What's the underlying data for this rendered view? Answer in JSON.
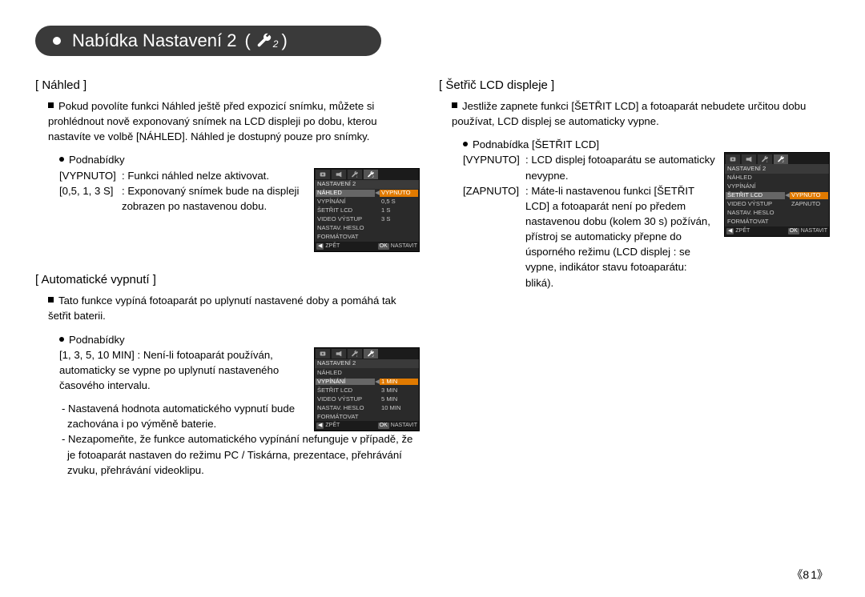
{
  "header": {
    "title": "Nabídka Nastavení 2",
    "open_paren": "(",
    "close_paren": ")",
    "subscript": "2",
    "wrench_color": "#ffffff"
  },
  "page_number": "81",
  "left": {
    "section1": {
      "title": "[ Náhled ]",
      "intro": "Pokud povolíte funkci Náhled ještě před expozicí snímku, můžete si prohlédnout nově exponovaný snímek na LCD displeji po dobu, kterou nastavíte ve volbě [NÁHLED]. Náhled je dostupný pouze pro snímky.",
      "sub_label": "Podnabídky",
      "opt1_key": "[VYPNUTO]",
      "opt1_val": ": Funkci náhled nelze aktivovat.",
      "opt2_key": "[0,5, 1, 3 S]",
      "opt2_val": ": Exponovaný snímek bude na displeji zobrazen po nastavenou dobu."
    },
    "section2": {
      "title": "[ Automatické vypnutí ]",
      "intro": "Tato funkce vypíná fotoaparát po uplynutí nastavené doby a pomáhá tak šetřit baterii.",
      "sub_label": "Podnabídky",
      "opt1_key": "[1, 3, 5, 10 MIN] : ",
      "opt1_val": "Není-li fotoaparát používán, automaticky se vypne po uplynutí nastaveného časového intervalu.",
      "note1": "- Nastavená hodnota automatického vypnutí bude zachována i po výměně baterie.",
      "note2": "- Nezapomeňte, že funkce automatického vypínání nefunguje v případě, že je fotoaparát nastaven do režimu PC / Tiskárna, prezentace, přehrávání zvuku, přehrávání videoklipu."
    }
  },
  "right": {
    "section1": {
      "title": "[ Šetřič LCD displeje ]",
      "intro": "Jestliže zapnete funkci [ŠETŘIT LCD] a fotoaparát nebudete určitou dobu používat, LCD displej se automaticky vypne.",
      "sub_label": "Podnabídka [ŠETŘIT LCD]",
      "opt1_key": "[VYPNUTO]",
      "opt1_val": ": LCD displej fotoaparátu se automaticky nevypne.",
      "opt2_key": "[ZAPNUTO]",
      "opt2_val": ": Máte-li nastavenou funkci [ŠETŘIT LCD] a fotoaparát není po předem nastavenou dobu (kolem 30 s) požíván, přístroj se automaticky přepne do úsporného režimu (LCD displej : se vypne, indikátor stavu fotoaparátu: bliká)."
    }
  },
  "lcd1": {
    "heading": "NASTAVENÍ 2",
    "rows": [
      {
        "l": "NÁHLED",
        "r": "VYPNUTO",
        "sel": true,
        "hilite": true
      },
      {
        "l": "VYPÍNÁNÍ",
        "r": "0,5 S"
      },
      {
        "l": "ŠETŘIT LCD",
        "r": "1 S"
      },
      {
        "l": "VIDEO VÝSTUP",
        "r": "3 S"
      },
      {
        "l": "NASTAV. HESLO",
        "r": ""
      },
      {
        "l": "FORMÁTOVAT",
        "r": ""
      }
    ],
    "foot_back_key": "◀",
    "foot_back": "ZPĚT",
    "foot_ok_key": "OK",
    "foot_ok": "NASTAVIT"
  },
  "lcd2": {
    "heading": "NASTAVENÍ 2",
    "rows": [
      {
        "l": "NÁHLED",
        "r": ""
      },
      {
        "l": "VYPÍNÁNÍ",
        "r": "1 MIN",
        "sel": true,
        "hilite": true
      },
      {
        "l": "ŠETŘIT LCD",
        "r": "3 MIN"
      },
      {
        "l": "VIDEO VÝSTUP",
        "r": "5 MIN"
      },
      {
        "l": "NASTAV. HESLO",
        "r": "10 MIN"
      },
      {
        "l": "FORMÁTOVAT",
        "r": ""
      }
    ],
    "foot_back_key": "◀",
    "foot_back": "ZPĚT",
    "foot_ok_key": "OK",
    "foot_ok": "NASTAVIT"
  },
  "lcd3": {
    "heading": "NASTAVENÍ 2",
    "rows": [
      {
        "l": "NÁHLED",
        "r": ""
      },
      {
        "l": "VYPÍNÁNÍ",
        "r": ""
      },
      {
        "l": "ŠETŘIT LCD",
        "r": "VYPNUTO",
        "sel": true,
        "hilite": true
      },
      {
        "l": "VIDEO VÝSTUP",
        "r": "ZAPNUTO"
      },
      {
        "l": "NASTAV. HESLO",
        "r": ""
      },
      {
        "l": "FORMÁTOVAT",
        "r": ""
      }
    ],
    "foot_back_key": "◀",
    "foot_back": "ZPĚT",
    "foot_ok_key": "OK",
    "foot_ok": "NASTAVIT"
  },
  "lcd_colors": {
    "bg": "#2a2a2a",
    "row_sel": "#666666",
    "row_hilite": "#e07a00",
    "text": "#c8c8c8"
  }
}
